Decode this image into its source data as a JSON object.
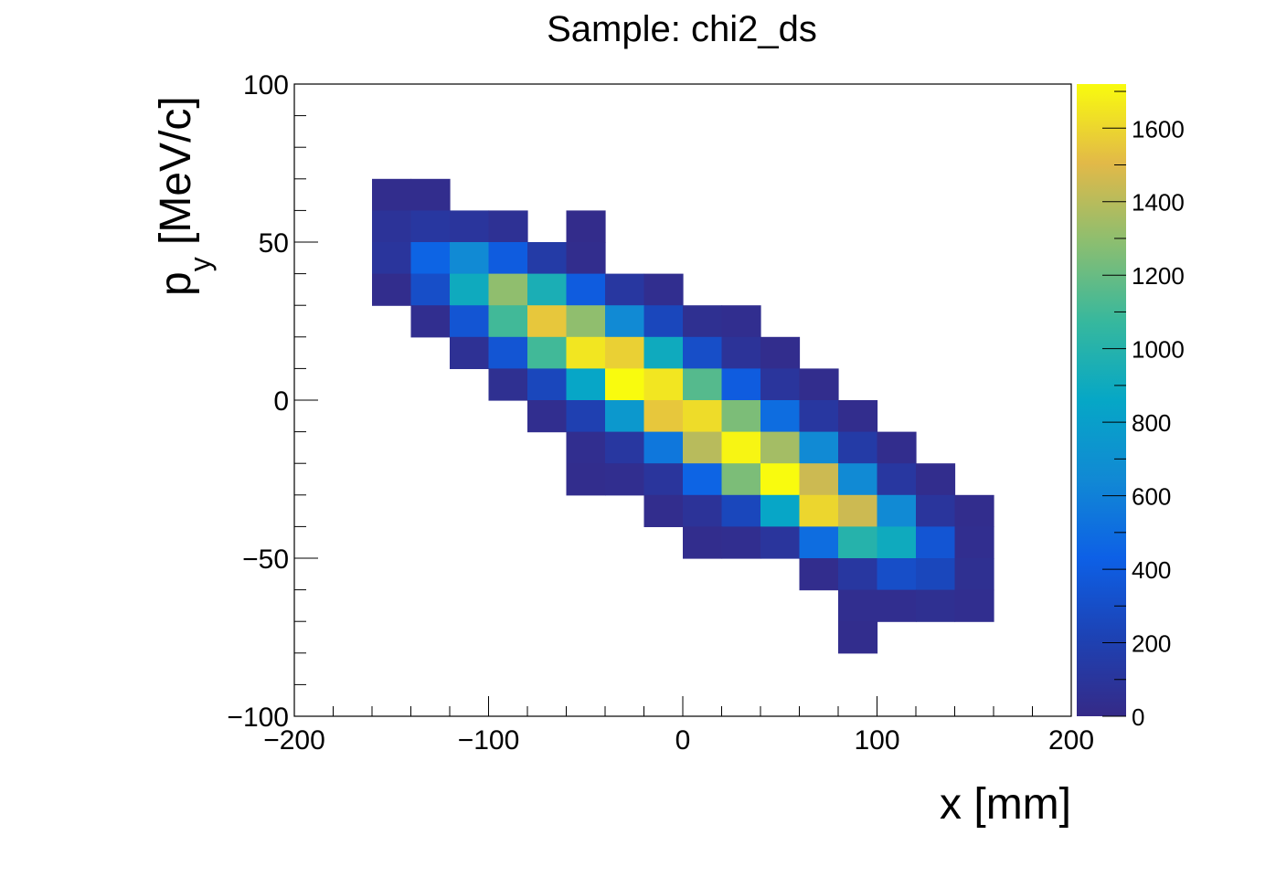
{
  "chart_data": {
    "type": "heatmap",
    "title": "Sample: chi2_ds",
    "xlabel": "x [mm]",
    "ylabel_main": "p",
    "ylabel_sub": "y",
    "ylabel_unit": " [MeV/c]",
    "xlim": [
      -200,
      200
    ],
    "ylim": [
      -100,
      100
    ],
    "bin_width_x": 20,
    "bin_width_y": 10,
    "x_ticks": [
      -200,
      -100,
      0,
      100,
      200
    ],
    "x_tick_labels": [
      "−200",
      "−100",
      "0",
      "100",
      "200"
    ],
    "y_ticks": [
      -100,
      -50,
      0,
      50,
      100
    ],
    "y_tick_labels": [
      "−100",
      "−50",
      "0",
      "50",
      "100"
    ],
    "colorbar": {
      "min": 0,
      "max": 1720,
      "ticks": [
        0,
        200,
        400,
        600,
        800,
        1000,
        1200,
        1400,
        1600
      ],
      "tick_labels": [
        "0",
        "200",
        "400",
        "600",
        "800",
        "1000",
        "1200",
        "1400",
        "1600"
      ],
      "colormap": "viridis-like"
    },
    "bins": [
      [
        -160,
        60,
        30
      ],
      [
        -140,
        60,
        30
      ],
      [
        -160,
        50,
        80
      ],
      [
        -140,
        50,
        120
      ],
      [
        -120,
        50,
        100
      ],
      [
        -100,
        50,
        60
      ],
      [
        -60,
        50,
        20
      ],
      [
        -160,
        40,
        100
      ],
      [
        -140,
        40,
        450
      ],
      [
        -120,
        40,
        650
      ],
      [
        -100,
        40,
        400
      ],
      [
        -80,
        40,
        150
      ],
      [
        -60,
        40,
        30
      ],
      [
        -160,
        30,
        30
      ],
      [
        -140,
        30,
        300
      ],
      [
        -120,
        30,
        900
      ],
      [
        -100,
        30,
        1300
      ],
      [
        -80,
        30,
        950
      ],
      [
        -60,
        30,
        400
      ],
      [
        -40,
        30,
        120
      ],
      [
        -20,
        30,
        40
      ],
      [
        -140,
        20,
        40
      ],
      [
        -120,
        20,
        350
      ],
      [
        -100,
        20,
        1100
      ],
      [
        -80,
        20,
        1550
      ],
      [
        -60,
        20,
        1300
      ],
      [
        -40,
        20,
        650
      ],
      [
        -20,
        20,
        250
      ],
      [
        0,
        20,
        50
      ],
      [
        20,
        20,
        40
      ],
      [
        -120,
        10,
        60
      ],
      [
        -100,
        10,
        350
      ],
      [
        -80,
        10,
        1100
      ],
      [
        -60,
        10,
        1650
      ],
      [
        -40,
        10,
        1580
      ],
      [
        -20,
        10,
        900
      ],
      [
        0,
        10,
        300
      ],
      [
        20,
        10,
        80
      ],
      [
        40,
        10,
        30
      ],
      [
        -100,
        0,
        50
      ],
      [
        -80,
        0,
        250
      ],
      [
        -60,
        0,
        850
      ],
      [
        -40,
        0,
        1720
      ],
      [
        -20,
        0,
        1650
      ],
      [
        0,
        0,
        1150
      ],
      [
        20,
        0,
        400
      ],
      [
        40,
        0,
        100
      ],
      [
        60,
        0,
        30
      ],
      [
        -80,
        -10,
        40
      ],
      [
        -60,
        -10,
        200
      ],
      [
        -40,
        -10,
        750
      ],
      [
        -20,
        -10,
        1550
      ],
      [
        0,
        -10,
        1620
      ],
      [
        20,
        -10,
        1250
      ],
      [
        40,
        -10,
        500
      ],
      [
        60,
        -10,
        120
      ],
      [
        80,
        -10,
        30
      ],
      [
        -60,
        -20,
        40
      ],
      [
        -40,
        -20,
        120
      ],
      [
        -20,
        -20,
        550
      ],
      [
        0,
        -20,
        1400
      ],
      [
        20,
        -20,
        1700
      ],
      [
        40,
        -20,
        1350
      ],
      [
        60,
        -20,
        650
      ],
      [
        80,
        -20,
        150
      ],
      [
        100,
        -20,
        30
      ],
      [
        -60,
        -30,
        30
      ],
      [
        -40,
        -30,
        40
      ],
      [
        -20,
        -30,
        100
      ],
      [
        0,
        -30,
        450
      ],
      [
        20,
        -30,
        1250
      ],
      [
        40,
        -30,
        1720
      ],
      [
        60,
        -30,
        1450
      ],
      [
        80,
        -30,
        650
      ],
      [
        100,
        -30,
        120
      ],
      [
        120,
        -30,
        30
      ],
      [
        -20,
        -40,
        30
      ],
      [
        0,
        -40,
        80
      ],
      [
        20,
        -40,
        250
      ],
      [
        40,
        -40,
        850
      ],
      [
        60,
        -40,
        1600
      ],
      [
        80,
        -40,
        1450
      ],
      [
        100,
        -40,
        650
      ],
      [
        120,
        -40,
        100
      ],
      [
        140,
        -40,
        30
      ],
      [
        0,
        -50,
        30
      ],
      [
        20,
        -50,
        40
      ],
      [
        40,
        -50,
        100
      ],
      [
        60,
        -50,
        500
      ],
      [
        80,
        -50,
        1000
      ],
      [
        100,
        -50,
        900
      ],
      [
        120,
        -50,
        350
      ],
      [
        140,
        -50,
        40
      ],
      [
        60,
        -60,
        30
      ],
      [
        80,
        -60,
        120
      ],
      [
        100,
        -60,
        300
      ],
      [
        120,
        -60,
        250
      ],
      [
        140,
        -60,
        50
      ],
      [
        80,
        -70,
        40
      ],
      [
        100,
        -70,
        40
      ],
      [
        120,
        -70,
        50
      ],
      [
        140,
        -70,
        40
      ],
      [
        80,
        -80,
        30
      ]
    ]
  }
}
